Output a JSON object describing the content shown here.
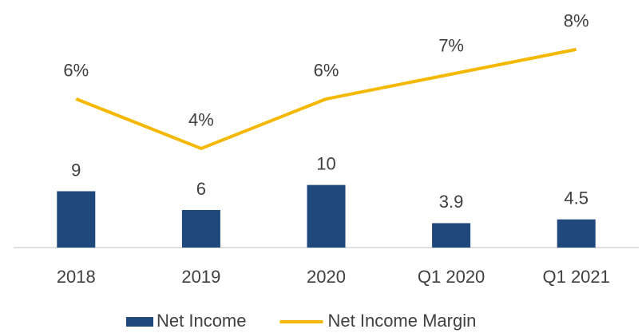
{
  "chart_data": {
    "type": "bar",
    "categories": [
      "2018",
      "2019",
      "2020",
      "Q1 2020",
      "Q1 2021"
    ],
    "series": [
      {
        "name": "Net Income",
        "type": "bar",
        "color": "#1f497d",
        "values": [
          9,
          6,
          10,
          3.9,
          4.5
        ]
      },
      {
        "name": "Net Income Margin",
        "type": "line",
        "axis": "y2",
        "color": "#f5b800",
        "values": [
          6,
          4,
          6,
          7,
          8
        ],
        "value_labels": [
          "6%",
          "4%",
          "6%",
          "7%",
          "8%"
        ]
      }
    ],
    "ylim": [
      0,
      37
    ],
    "y2lim": [
      0,
      9.35
    ],
    "grid": false,
    "legend": "bottom"
  }
}
